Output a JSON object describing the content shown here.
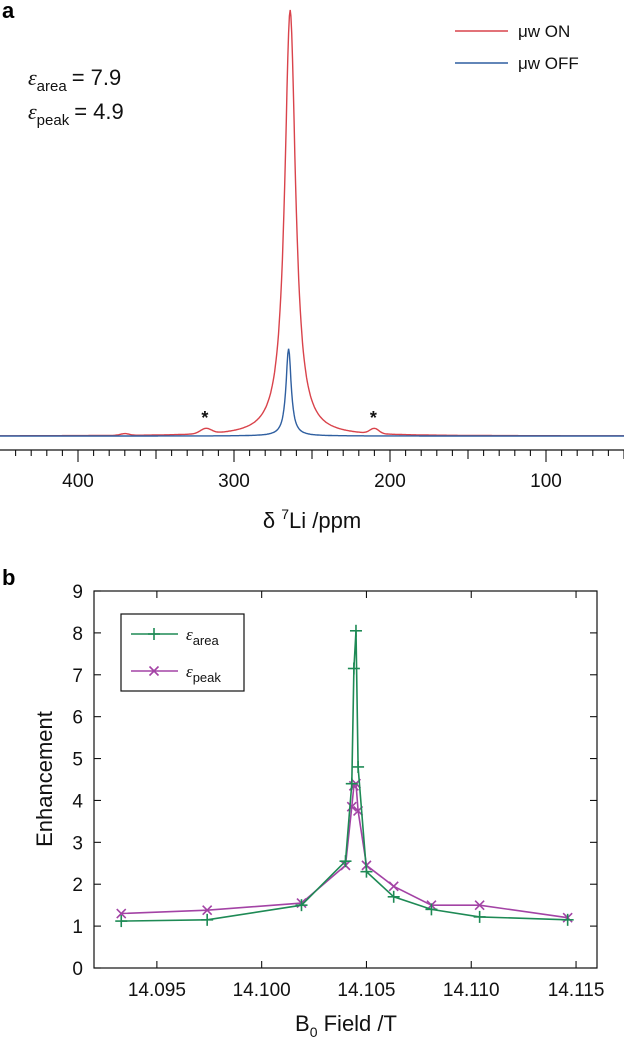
{
  "chart_data": [
    {
      "panel": "a",
      "type": "line",
      "xlabel_prefix": "δ ",
      "xlabel_sup": "7",
      "xlabel_rest": "Li /ppm",
      "xlim": [
        450,
        50
      ],
      "x_ticks": [
        400,
        300,
        200,
        100
      ],
      "legend_placement": "top-right",
      "annotations": {
        "eps_area_sub": "area",
        "eps_area_value": "= 7.9",
        "eps_peak_sub": "peak",
        "eps_peak_value": "= 4.9",
        "stars": [
          318,
          210
        ],
        "star_text": "*"
      },
      "series": [
        {
          "name": "μw ON",
          "color": "#d9434b",
          "peak_ppm": 264,
          "peak_height": 1.0,
          "peak_width": 4.2,
          "side_bands": [
            [
              318,
              0.012,
              5
            ],
            [
              210,
              0.012,
              4
            ],
            [
              370,
              0.004,
              4
            ]
          ]
        },
        {
          "name": "μw OFF",
          "color": "#2f5fa0",
          "peak_ppm": 265,
          "peak_height": 0.205,
          "peak_width": 2.0,
          "side_bands": []
        }
      ]
    },
    {
      "panel": "b",
      "type": "line",
      "xlabel_main": "B",
      "xlabel_sub": "0",
      "xlabel_rest": " Field /T",
      "ylabel": "Enhancement",
      "xlim": [
        14.092,
        14.116
      ],
      "ylim": [
        0,
        9
      ],
      "x_ticks": [
        14.095,
        14.1,
        14.105,
        14.11,
        14.115
      ],
      "x_tick_labels": [
        "14.095",
        "14.100",
        "14.105",
        "14.110",
        "14.115"
      ],
      "y_ticks": [
        0,
        1,
        2,
        3,
        4,
        5,
        6,
        7,
        8,
        9
      ],
      "legend_placement": "top-left",
      "series": [
        {
          "name_sub": "area",
          "color": "#1e8a55",
          "marker": "plus",
          "x": [
            14.0933,
            14.0974,
            14.1019,
            14.104,
            14.1043,
            14.1044,
            14.1045,
            14.1046,
            14.105,
            14.1063,
            14.1081,
            14.1104,
            14.1146
          ],
          "y": [
            1.12,
            1.15,
            1.5,
            2.55,
            4.4,
            7.15,
            8.05,
            4.8,
            2.3,
            1.7,
            1.4,
            1.22,
            1.15
          ]
        },
        {
          "name_sub": "peak",
          "color": "#a343a5",
          "marker": "cross",
          "x": [
            14.0933,
            14.0974,
            14.1019,
            14.104,
            14.1043,
            14.1044,
            14.1045,
            14.1046,
            14.105,
            14.1063,
            14.1081,
            14.1104,
            14.1146
          ],
          "y": [
            1.3,
            1.38,
            1.55,
            2.45,
            3.85,
            4.35,
            4.4,
            3.75,
            2.45,
            1.95,
            1.5,
            1.5,
            1.2
          ]
        }
      ]
    }
  ]
}
